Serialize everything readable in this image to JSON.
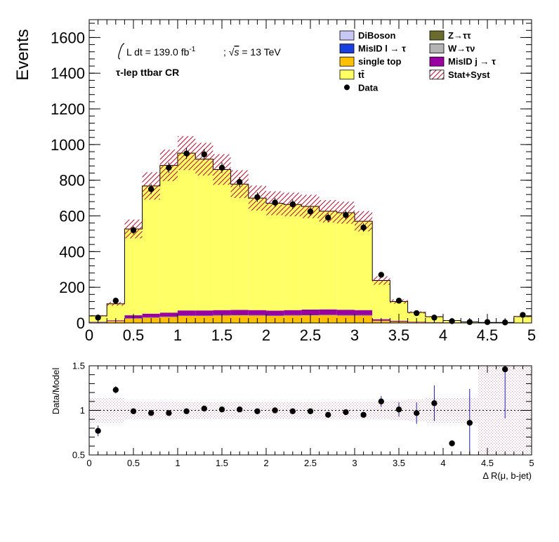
{
  "chart_data": [
    {
      "type": "stacked-histogram",
      "ylabel": "Events",
      "xlim": [
        0,
        5
      ],
      "ylim": [
        0,
        1700
      ],
      "x_ticks": [
        "0",
        "0.5",
        "1",
        "1.5",
        "2",
        "2.5",
        "3",
        "3.5",
        "4",
        "4.5",
        "5"
      ],
      "y_ticks": [
        "0",
        "200",
        "400",
        "600",
        "800",
        "1000",
        "1200",
        "1400",
        "1600"
      ],
      "y_tick_values": [
        0,
        200,
        400,
        600,
        800,
        1000,
        1200,
        1400,
        1600
      ],
      "annotation_lumi": "L dt = 139.0 fb",
      "annotation_lumi_sup": "-1",
      "annotation_energy": "= 13 TeV",
      "annotation_region": "τ-lep ttbar CR",
      "bin_edges": [
        0,
        0.2,
        0.4,
        0.6,
        0.8,
        1.0,
        1.2,
        1.4,
        1.6,
        1.8,
        2.0,
        2.2,
        2.4,
        2.6,
        2.8,
        3.0,
        3.2,
        3.4,
        3.6,
        3.8,
        4.0,
        4.2,
        4.4,
        4.6,
        4.8,
        5.0
      ],
      "legend": [
        {
          "label": "DiBoson",
          "color": "#c8c8f4",
          "kind": "box"
        },
        {
          "label": "Z→ττ",
          "color": "#6b6b2e",
          "kind": "box"
        },
        {
          "label": "MisID l → τ",
          "color": "#1a3fe0",
          "kind": "box"
        },
        {
          "label": "W→τν",
          "color": "#b4b4b4",
          "kind": "box"
        },
        {
          "label": "single top",
          "color": "#ffc000",
          "kind": "box"
        },
        {
          "label": "MisID j → τ",
          "color": "#9900a0",
          "kind": "box"
        },
        {
          "label": "tt̄",
          "color": "#ffff66",
          "kind": "box"
        },
        {
          "label": "Stat+Syst",
          "color": "#a0102a",
          "kind": "hatch"
        },
        {
          "label": "Data",
          "color": "#000000",
          "kind": "marker"
        }
      ],
      "series": [
        {
          "name": "single top",
          "color": "#ffc000",
          "values": [
            3,
            10,
            25,
            30,
            34,
            40,
            40,
            42,
            43,
            42,
            40,
            42,
            43,
            44,
            42,
            42,
            12,
            6,
            4,
            3,
            2,
            1,
            1,
            1,
            1
          ]
        },
        {
          "name": "MisID l → τ",
          "color": "#1a3fe0",
          "values": [
            1,
            1,
            2,
            2,
            2,
            2,
            2,
            2,
            2,
            2,
            2,
            2,
            2,
            2,
            2,
            2,
            1,
            1,
            0,
            0,
            0,
            0,
            0,
            0,
            0
          ]
        },
        {
          "name": "MisID j → τ",
          "color": "#9900a0",
          "values": [
            2,
            4,
            16,
            20,
            22,
            28,
            28,
            28,
            28,
            28,
            27,
            28,
            30,
            30,
            30,
            28,
            8,
            5,
            3,
            2,
            1,
            1,
            0,
            0,
            1
          ]
        },
        {
          "name": "tt̄",
          "color": "#ffff66",
          "values": [
            34,
            92,
            484,
            716,
            825,
            882,
            848,
            788,
            705,
            628,
            602,
            592,
            578,
            550,
            544,
            498,
            217,
            108,
            52,
            30,
            11,
            4,
            2,
            2,
            34
          ]
        }
      ],
      "data_points": {
        "x": [
          0.1,
          0.3,
          0.5,
          0.7,
          0.9,
          1.1,
          1.3,
          1.5,
          1.7,
          1.9,
          2.1,
          2.3,
          2.5,
          2.7,
          2.9,
          3.1,
          3.3,
          3.5,
          3.7,
          3.9,
          4.1,
          4.3,
          4.5,
          4.7,
          4.9
        ],
        "y": [
          30,
          125,
          520,
          750,
          870,
          950,
          945,
          870,
          790,
          705,
          675,
          665,
          625,
          590,
          605,
          535,
          270,
          125,
          55,
          30,
          10,
          5,
          5,
          3,
          45
        ]
      },
      "band_rel_unc": 0.1
    },
    {
      "type": "ratio",
      "ylabel": "Data/Model",
      "xlabel": "Δ R(μ, b-jet)",
      "xlim": [
        0,
        5
      ],
      "ylim": [
        0.5,
        1.5
      ],
      "x_ticks": [
        "0",
        "0.5",
        "1",
        "1.5",
        "2",
        "2.5",
        "3",
        "3.5",
        "4",
        "4.5",
        "5"
      ],
      "y_ticks": [
        "0.5",
        "1",
        "1.5"
      ],
      "y_tick_values": [
        0.5,
        1.0,
        1.5
      ],
      "x": [
        0.1,
        0.3,
        0.5,
        0.7,
        0.9,
        1.1,
        1.3,
        1.5,
        1.7,
        1.9,
        2.1,
        2.3,
        2.5,
        2.7,
        2.9,
        3.1,
        3.3,
        3.5,
        3.7,
        3.9,
        4.1,
        4.3,
        4.7
      ],
      "values": [
        0.77,
        1.23,
        0.99,
        0.97,
        0.97,
        0.99,
        1.02,
        1.01,
        1.01,
        0.99,
        1.0,
        0.99,
        0.99,
        0.95,
        0.98,
        0.95,
        1.1,
        1.01,
        0.97,
        1.08,
        0.63,
        0.86,
        1.46
      ],
      "err": [
        0.06,
        0.04,
        0.02,
        0.02,
        0.02,
        0.02,
        0.02,
        0.02,
        0.02,
        0.02,
        0.02,
        0.02,
        0.02,
        0.02,
        0.02,
        0.02,
        0.06,
        0.08,
        0.12,
        0.2,
        0.0,
        0.38,
        0.55
      ],
      "band_lo": [
        0.86,
        0.86,
        0.9,
        0.9,
        0.9,
        0.91,
        0.91,
        0.91,
        0.91,
        0.91,
        0.91,
        0.91,
        0.91,
        0.9,
        0.9,
        0.9,
        0.9,
        0.89,
        0.88,
        0.86,
        0.86,
        0.86,
        0.5,
        0.5,
        0.5
      ],
      "band_hi": [
        1.14,
        1.14,
        1.1,
        1.1,
        1.1,
        1.09,
        1.09,
        1.09,
        1.09,
        1.09,
        1.09,
        1.09,
        1.09,
        1.1,
        1.1,
        1.1,
        1.1,
        1.11,
        1.12,
        1.14,
        1.14,
        1.14,
        1.5,
        1.5,
        1.5
      ]
    }
  ]
}
